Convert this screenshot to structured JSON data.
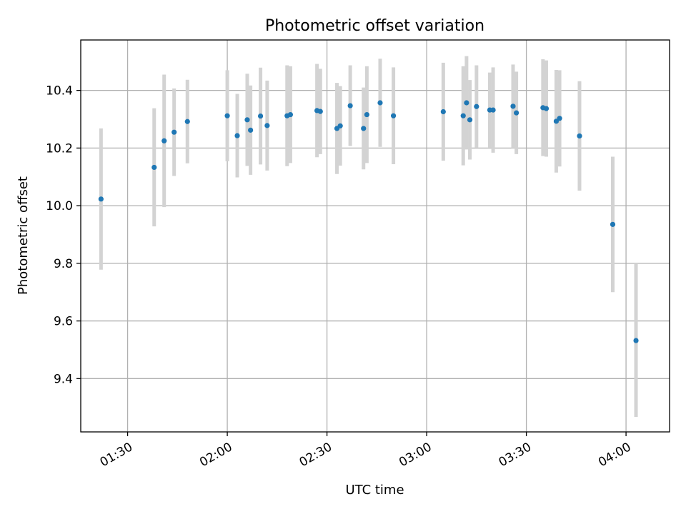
{
  "chart_data": {
    "type": "scatter",
    "title": "Photometric offset variation",
    "xlabel": "UTC time",
    "ylabel": "Photometric offset",
    "xlim_minutes": [
      75.9,
      253.1
    ],
    "ylim": [
      9.215,
      10.575
    ],
    "x_ticks": [
      {
        "label": "01:30",
        "minutes": 90
      },
      {
        "label": "02:00",
        "minutes": 120
      },
      {
        "label": "02:30",
        "minutes": 150
      },
      {
        "label": "03:00",
        "minutes": 180
      },
      {
        "label": "03:30",
        "minutes": 210
      },
      {
        "label": "04:00",
        "minutes": 240
      }
    ],
    "y_ticks": [
      9.4,
      9.6,
      9.8,
      10.0,
      10.2,
      10.4
    ],
    "y_tick_labels": [
      "9.4",
      "9.6",
      "9.8",
      "10.0",
      "10.2",
      "10.4"
    ],
    "grid": true,
    "marker_color": "#1f77b4",
    "errorbar_color": "#d3d3d3",
    "points": [
      {
        "t": "01:22",
        "y": 10.023,
        "err": 0.245
      },
      {
        "t": "01:38",
        "y": 10.133,
        "err": 0.205
      },
      {
        "t": "01:41",
        "y": 10.225,
        "err": 0.23
      },
      {
        "t": "01:44",
        "y": 10.255,
        "err": 0.152
      },
      {
        "t": "01:48",
        "y": 10.292,
        "err": 0.145
      },
      {
        "t": "02:00",
        "y": 10.312,
        "err": 0.158
      },
      {
        "t": "02:03",
        "y": 10.243,
        "err": 0.145
      },
      {
        "t": "02:06",
        "y": 10.298,
        "err": 0.16
      },
      {
        "t": "02:07",
        "y": 10.262,
        "err": 0.155
      },
      {
        "t": "02:10",
        "y": 10.311,
        "err": 0.168
      },
      {
        "t": "02:12",
        "y": 10.278,
        "err": 0.156
      },
      {
        "t": "02:18",
        "y": 10.312,
        "err": 0.175
      },
      {
        "t": "02:19",
        "y": 10.316,
        "err": 0.168
      },
      {
        "t": "02:27",
        "y": 10.33,
        "err": 0.162
      },
      {
        "t": "02:28",
        "y": 10.327,
        "err": 0.148
      },
      {
        "t": "02:33",
        "y": 10.268,
        "err": 0.158
      },
      {
        "t": "02:34",
        "y": 10.277,
        "err": 0.138
      },
      {
        "t": "02:37",
        "y": 10.347,
        "err": 0.14
      },
      {
        "t": "02:41",
        "y": 10.268,
        "err": 0.142
      },
      {
        "t": "02:42",
        "y": 10.316,
        "err": 0.168
      },
      {
        "t": "02:46",
        "y": 10.357,
        "err": 0.153
      },
      {
        "t": "02:50",
        "y": 10.312,
        "err": 0.168
      },
      {
        "t": "03:05",
        "y": 10.326,
        "err": 0.17
      },
      {
        "t": "03:11",
        "y": 10.312,
        "err": 0.172
      },
      {
        "t": "03:12",
        "y": 10.357,
        "err": 0.162
      },
      {
        "t": "03:13",
        "y": 10.298,
        "err": 0.138
      },
      {
        "t": "03:15",
        "y": 10.344,
        "err": 0.143
      },
      {
        "t": "03:19",
        "y": 10.332,
        "err": 0.13
      },
      {
        "t": "03:20",
        "y": 10.332,
        "err": 0.148
      },
      {
        "t": "03:26",
        "y": 10.345,
        "err": 0.145
      },
      {
        "t": "03:27",
        "y": 10.322,
        "err": 0.143
      },
      {
        "t": "03:35",
        "y": 10.34,
        "err": 0.168
      },
      {
        "t": "03:36",
        "y": 10.337,
        "err": 0.167
      },
      {
        "t": "03:39",
        "y": 10.293,
        "err": 0.178
      },
      {
        "t": "03:40",
        "y": 10.303,
        "err": 0.167
      },
      {
        "t": "03:46",
        "y": 10.242,
        "err": 0.19
      },
      {
        "t": "03:56",
        "y": 9.935,
        "err": 0.235
      },
      {
        "t": "04:03",
        "y": 9.532,
        "err": 0.265
      }
    ]
  }
}
